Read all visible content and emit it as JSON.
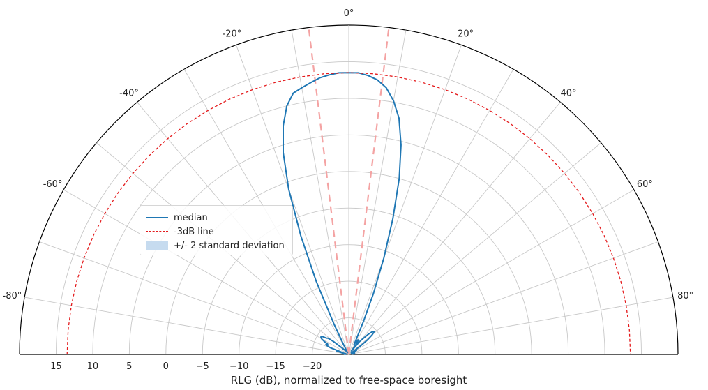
{
  "chart_data": {
    "type": "polar",
    "xlabel": "RLG (dB), normalized to free-space boresight",
    "radial_ticks": [
      "15",
      "10",
      "5",
      "0",
      "−5",
      "−10",
      "−15",
      "−20"
    ],
    "radial_tick_values": [
      15,
      10,
      5,
      0,
      -5,
      -10,
      -15,
      -20
    ],
    "radial_range": [
      -25,
      20
    ],
    "angle_range_deg": [
      -90,
      90
    ],
    "angle_ticks": [
      "-80°",
      "-60°",
      "-40°",
      "-20°",
      "0°",
      "20°",
      "40°",
      "60°",
      "80°"
    ],
    "angle_tick_values": [
      -80,
      -60,
      -40,
      -20,
      0,
      20,
      40,
      60,
      80
    ],
    "grid": true,
    "legend_position": "left-middle",
    "legend": [
      {
        "label": "median",
        "style": "solid",
        "color": "#1f77b4"
      },
      {
        "label": "-3dB line",
        "style": "dashed",
        "color": "#e41a1c"
      },
      {
        "label": "+/- 2 standard deviation",
        "style": "fill",
        "color": "#c6dbef"
      }
    ],
    "series": [
      {
        "name": "median",
        "angles_deg": [
          -86,
          -84,
          -82,
          -80,
          -78,
          -76,
          -74,
          -72,
          -70,
          -68,
          -66,
          -64,
          -62,
          -60,
          -58,
          -56,
          -54,
          -52,
          -50,
          -48,
          -46,
          -44,
          -42,
          -40,
          -38,
          -36,
          -34,
          -32,
          -30,
          -28,
          -26,
          -24,
          -22,
          -20,
          -18,
          -16,
          -14,
          -12,
          -10,
          -8,
          -6,
          -4,
          -2,
          0,
          2,
          4,
          6,
          8,
          10,
          12,
          14,
          16,
          18,
          20,
          22,
          24,
          26,
          28,
          30,
          32,
          34,
          36,
          38,
          40,
          42,
          44,
          46,
          48,
          50,
          52,
          54,
          56,
          58,
          60,
          62,
          64,
          66,
          68,
          70,
          72,
          74,
          76,
          78,
          80,
          82,
          84,
          86
        ],
        "values": [
          -24.3,
          -24.6,
          -24.2,
          -24.1,
          -24.6,
          -24.0,
          -23.3,
          -23.9,
          -22.3,
          -21.8,
          -21.6,
          -21.8,
          -21.2,
          -20.7,
          -20.5,
          -20.6,
          -21.2,
          -21.4,
          -22.2,
          -23.2,
          -23.7,
          -24.1,
          -24.2,
          -24.2,
          -24.4,
          -24.6,
          -24.7,
          -24.5,
          -24.3,
          -23.5,
          -20.5,
          -14.0,
          -7.5,
          -1.0,
          4.0,
          7.5,
          10.0,
          11.5,
          12.0,
          12.5,
          13.0,
          13.3,
          13.5,
          13.5,
          13.5,
          13.2,
          12.7,
          11.8,
          10.2,
          8.0,
          4.5,
          0.0,
          -5.5,
          -11.0,
          -16.0,
          -20.0,
          -22.5,
          -23.5,
          -23.0,
          -22.7,
          -22.6,
          -23.3,
          -24.4,
          -22.8,
          -22.1,
          -21.2,
          -20.5,
          -20.3,
          -20.8,
          -21.7,
          -23.0,
          -24.2,
          -24.6,
          -24.3,
          -23.8,
          -24.2,
          -24.5,
          -24.1,
          -24.4,
          -24.6,
          -24.2,
          -24.3,
          -24.6,
          -24.5,
          -24.2,
          -24.4,
          -24.6
        ]
      },
      {
        "name": "-3dB line",
        "angles_deg": [
          -90,
          90
        ],
        "values": [
          13.5,
          13.5
        ]
      }
    ],
    "beamwidth_lines_deg": [
      -7,
      7
    ]
  }
}
